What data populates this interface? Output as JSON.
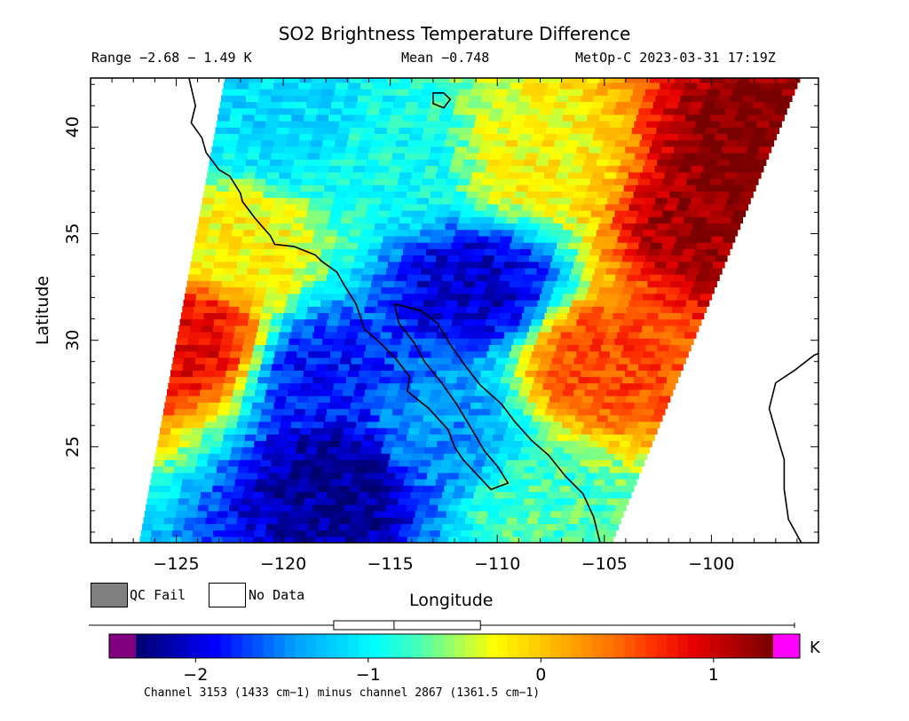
{
  "header": {
    "title": "SO2 Brightness Temperature Difference",
    "range_text": "Range −2.68 − 1.49 K",
    "mean_text": "Mean −0.748",
    "satellite_time": "MetOp-C 2023-03-31 17:19Z"
  },
  "legend": {
    "qc_fail_label": "QC Fail",
    "qc_fail_color": "#808080",
    "no_data_label": "No Data",
    "no_data_color": "#ffffff"
  },
  "colorbar": {
    "unit": "K",
    "min": -2.5,
    "max": 1.5,
    "ticks": [
      {
        "value": -2,
        "label": "−2"
      },
      {
        "value": -1,
        "label": "−1"
      },
      {
        "value": 0,
        "label": "0"
      },
      {
        "value": 1,
        "label": "1"
      }
    ],
    "colors": [
      "#800080",
      "#00006e",
      "#0000b4",
      "#0000ff",
      "#0050ff",
      "#00a0ff",
      "#00d0ff",
      "#00ffff",
      "#40ffc0",
      "#a0ff60",
      "#ffff00",
      "#ffd000",
      "#ffa000",
      "#ff7000",
      "#ff3000",
      "#e60000",
      "#b00000",
      "#780000",
      "#ff00ff"
    ],
    "boxplot": {
      "min": -2.68,
      "q1": -1.2,
      "median": -0.85,
      "q3": -0.35,
      "max": 1.49
    }
  },
  "caption": "Channel 3153 (1433 cm−1) minus channel 2867 (1361.5 cm−1)",
  "chart_data": {
    "type": "heatmap",
    "title": "SO2 Brightness Temperature Difference",
    "xlabel": "Longitude",
    "ylabel": "Latitude",
    "xlim": [
      -129,
      -95
    ],
    "ylim": [
      20.5,
      42.3
    ],
    "x_ticks": [
      {
        "value": -125,
        "label": "−125"
      },
      {
        "value": -120,
        "label": "−120"
      },
      {
        "value": -115,
        "label": "−115"
      },
      {
        "value": -110,
        "label": "−110"
      },
      {
        "value": -105,
        "label": "−105"
      },
      {
        "value": -100,
        "label": "−100"
      }
    ],
    "y_ticks": [
      {
        "value": 25,
        "label": "25"
      },
      {
        "value": 30,
        "label": "30"
      },
      {
        "value": 35,
        "label": "35"
      },
      {
        "value": 40,
        "label": "40"
      }
    ],
    "swath": {
      "west_edge": [
        [
          -126.7,
          20.5
        ],
        [
          -122.7,
          42.3
        ]
      ],
      "east_edge": [
        [
          -104.6,
          20.5
        ],
        [
          -95.8,
          42.3
        ]
      ]
    },
    "value_range": [
      -2.68,
      1.49
    ],
    "mean": -0.748,
    "units": "K",
    "regions": [
      {
        "lon": -124.5,
        "lat": 30,
        "value": 0.9
      },
      {
        "lon": -122,
        "lat": 34.5,
        "value": -0.2
      },
      {
        "lon": -118,
        "lat": 28.5,
        "value": -1.8
      },
      {
        "lon": -117,
        "lat": 23.5,
        "value": -2.2
      },
      {
        "lon": -111,
        "lat": 32.5,
        "value": -2.0
      },
      {
        "lon": -113,
        "lat": 25.5,
        "value": -1.4
      },
      {
        "lon": -105,
        "lat": 29,
        "value": 0.6
      },
      {
        "lon": -100,
        "lat": 35.5,
        "value": 1.2
      },
      {
        "lon": -98,
        "lat": 39,
        "value": 1.3
      },
      {
        "lon": -108,
        "lat": 38.5,
        "value": -0.2
      },
      {
        "lon": -115,
        "lat": 38.5,
        "value": -0.9
      },
      {
        "lon": -120,
        "lat": 40,
        "value": -1.1
      },
      {
        "lon": -108,
        "lat": 22,
        "value": -0.7
      }
    ],
    "qc_fail_pixels": [],
    "coastline": true
  }
}
